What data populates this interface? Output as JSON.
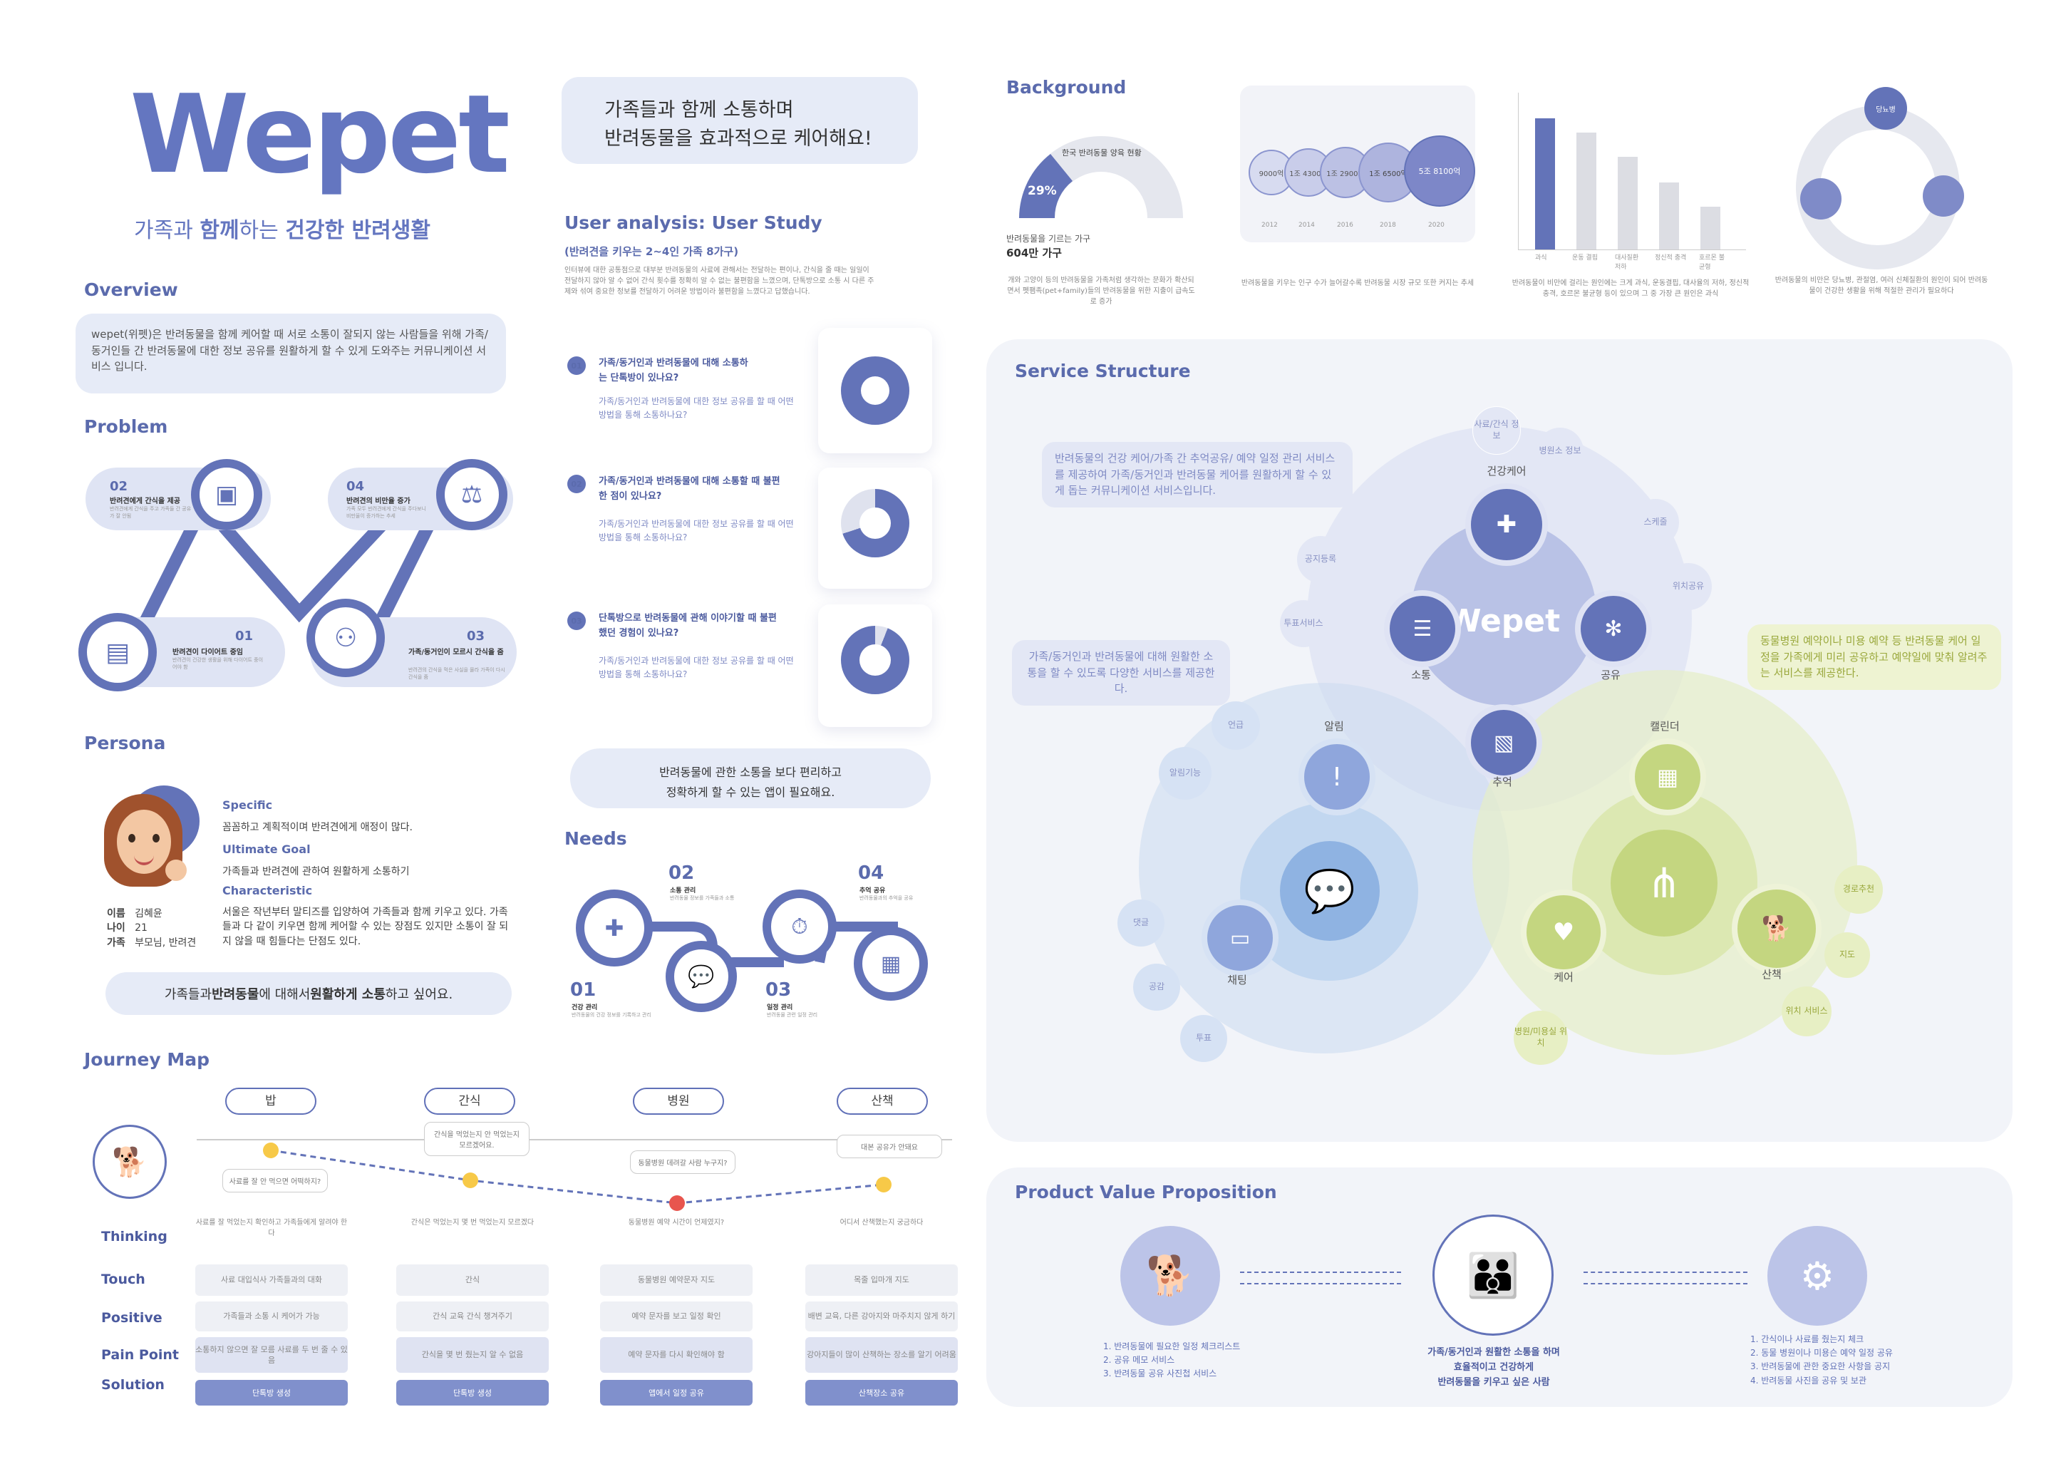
{
  "brand": {
    "logo": "Wepet",
    "tagline_pre": "가족과 ",
    "tagline_b1": "함께",
    "tagline_mid": "하는 ",
    "tagline_b2": "건강한 반려생활"
  },
  "hero_bubble": {
    "line1": "가족들과 함께 소통하며",
    "line2": "반려동물을 효과적으로 케어해요!"
  },
  "overview": {
    "title": "Overview",
    "text": "wepet(위펫)은 반려동물을 함께 케어할 때 서로 소통이 잘되지 않는 사람들을 위해 가족/동거인들 간 반려동물에 대한 정보 공유를 원활하게 할 수 있게 도와주는 커뮤니케이션 서비스 입니다."
  },
  "problem": {
    "title": "Problem",
    "items": [
      {
        "num": "02",
        "title": "반려견에게 간식을 제공",
        "desc": "반려견에게 간식을 주고 가족들 간 공유가 잘 안됨"
      },
      {
        "num": "04",
        "title": "반려견의 비만율 증가",
        "desc": "가족 모두 반려견에게 간식을 주다보니 비만율이 증가하는 추세"
      },
      {
        "num": "01",
        "title": "반려견이 다이어트 중임",
        "desc": "반려견이 건강한 생활을 위해 다이어트 중이어야 함"
      },
      {
        "num": "03",
        "title": "가족/동거인이 모르시 간식을 줌",
        "desc": "반려견의 간식을 먹은 사실을 몰라 가족이 다시 간식을 줌"
      }
    ]
  },
  "persona": {
    "title": "Persona",
    "specific_label": "Specific",
    "specific": "꼼꼼하고 계획적이며 반려견에게 애정이 많다.",
    "goal_label": "Ultimate Goal",
    "goal": "가족들과 반려견에 관하여 원활하게 소통하기",
    "char_label": "Characteristic",
    "char": "서울은 작년부터 말티즈를 입양하여 가족들과 함께 키우고 있다. 가족들과 다 같이 키우면 함께 케어할 수 있는 장점도 있지만 소통이 잘 되지 않을 때 힘들다는 단점도 있다.",
    "name_label": "이름",
    "name": "김혜윤",
    "age_label": "나이",
    "age": "21",
    "family_label": "가족",
    "family": "부모님, 반려견",
    "quote_pre": "가족들과 ",
    "quote_b1": "반려동물",
    "quote_mid": "에 대해서 ",
    "quote_b2": "원활하게 소통",
    "quote_post": "하고 싶어요."
  },
  "user_analysis": {
    "title": "User analysis: User Study",
    "subtitle": "(반려견을 키우는 2~4인 가족 8가구)",
    "desc": "인터뷰에 대한 공통점으로 대부분 반려동물의 사료에 관해서는 전달하는 편이나, 간식을 줄 때는 일일이 전달하지 않아 알 수 없어 간식 횟수를 정확히 알 수 없는 불편함을 느꼈으며, 단톡방으로 소통 시 다른 주제와 섞여 중요한 정보를 전달하기 어려운 방법이라 불편함을 느꼈다고 답했습니다.",
    "q": [
      {
        "num": "01",
        "title": "가족/동거인과 반려동물에 대해 소통하는 단톡방이 있나요?",
        "desc": "가족/동거인과 반려동물에 대한 정보 공유를 할 때 어떤 방법을 통해 소통하나요?"
      },
      {
        "num": "02",
        "title": "가족/동거인과 반려동물에 대해 소통할 때 불편한 점이 있나요?",
        "desc": "가족/동거인과 반려동물에 대한 정보 공유를 할 때 어떤 방법을 통해 소통하나요?"
      },
      {
        "num": "03",
        "title": "단톡방으로 반려동물에 관해 이야기할 때 불편했던 경험이 있나요?",
        "desc": "가족/동거인과 반려동물에 대한 정보 공유를 할 때 어떤 방법을 통해 소통하나요?"
      }
    ],
    "quote_line1": "반려동물에 관한 소통을 보다 편리하고",
    "quote_line2": "정확하게 할 수 있는 앱이 필요해요."
  },
  "needs": {
    "title": "Needs",
    "items": [
      {
        "num": "01",
        "title": "건강 관리",
        "desc": "반려동물의 건강 정보를 기록하고 관리"
      },
      {
        "num": "02",
        "title": "소통 관리",
        "desc": "반려동물 정보를 가족들과 소통"
      },
      {
        "num": "03",
        "title": "일정 관리",
        "desc": "반려동물 관련 일정 관리"
      },
      {
        "num": "04",
        "title": "추억 공유",
        "desc": "반려동물과의 추억을 공유"
      }
    ]
  },
  "journey": {
    "title": "Journey Map",
    "stages": [
      "밥",
      "간식",
      "병원",
      "산책"
    ],
    "notes": [
      "사료를 잘 안 먹으면 어떡하지?",
      "간식을 먹었는지 안 먹었는지 모르겠어요.",
      "동물병원 데려갈 사람 누구지?",
      "대본 공유가 안돼요"
    ],
    "rows": [
      "Thinking",
      "Touch",
      "Positive",
      "Pain Point",
      "Solution"
    ],
    "thinking": [
      "사료를 잘 먹었는지 확인하고 가족들에게 알려야 한다",
      "간식은 먹었는지 몇 번 먹었는지 모르겠다",
      "동물병원 예약 시간이 언제였지?",
      "어디서 산책했는지 궁금하다"
    ],
    "touch": [
      "사료 대입식사 가족들과의 대화",
      "간식",
      "동물병원 예약문자 지도",
      "목줄 입마개 지도"
    ],
    "positive": [
      "가족들과 소통 시 케어가 가능",
      "간식 교육 간식 챙겨주기",
      "예약 문자를 보고 일정 확인",
      "배변 교육, 다른 강아지와 마주치지 않게 하기"
    ],
    "pain": [
      "소통하지 않으면 잘 모름 사료를 두 번 줄 수 있음",
      "간식을 몇 번 줬는지 알 수 없음",
      "예약 문자를 다시 확인해야 함",
      "강아지들이 많이 산책하는 장소를 알기 어려움"
    ],
    "solution": [
      "단톡방 생성",
      "단톡방 생성",
      "앱에서 일정 공유",
      "산책장소 공유"
    ]
  },
  "background": {
    "title": "Background",
    "donut_title": "한국 반려동물 양육 현황",
    "donut_pct": "29%",
    "donut_label": "반려동물을 기르는 가구",
    "donut_value": "604만 가구",
    "bubbles_values": [
      "9000억",
      "1조 4300억",
      "1조 2900억",
      "1조 6500억",
      "5조 8100억"
    ],
    "bubbles_years": [
      "2012",
      "2014",
      "2016",
      "2018",
      "2020"
    ],
    "bar_categories": [
      "과식",
      "운동 결핍",
      "대사질환 저하",
      "정신적 충격",
      "호르몬 불균형"
    ],
    "cycle_center": "당뇨병",
    "cap1": "개와 고양이 등의 반려동물을 가족처럼 생각하는 문화가 확산되면서 펫팸족(pet+family)들의 반려동물을 위한 지출이 급속도로 증가",
    "cap2": "반려동물을 키우는 인구 수가 늘어갈수록 반려동물 시장 규모 또한 커지는 추세",
    "cap3": "반려동물이 비만에 걸리는 원인에는 크게 과식, 운동결핍, 대사율의 저하, 정신적 충격, 호르몬 불균형 등이 있으며 그 중 가장 큰 원인은 과식",
    "cap4": "반려동물의 비만은 당뇨병, 관절염, 여러 신체질환의 원인이 되어 반려동물이 건강한 생활을 위해 적절한 관리가 필요하다"
  },
  "service": {
    "title": "Service Structure",
    "logo": "Wepet",
    "desc1": "반려동물의 건강 케어/가족 간 추억공유/ 예약 일정 관리 서비스를 제공하여 가족/동거인과 반려동물 케어를 원활하게 할 수 있게 돕는 커뮤니케이션 서비스입니다.",
    "desc2": "가족/동거인과 반려동물에 대해 원활한 소통을 할 수 있도록 다양한 서비스를 제공한다.",
    "desc3": "동물병원 예약이나 미용 예약 등 반려동물 케어 일정을 가족에게 미리 공유하고 예약일에 맞춰 알려주는 서비스를 제공한다.",
    "nodes": {
      "health": "건강케어",
      "talk": "소통",
      "share": "공유",
      "memory": "추억",
      "alarm": "알림",
      "calendar": "캘린더",
      "chat": "채팅",
      "care": "케어",
      "walk": "산책"
    },
    "tags": [
      "사료/간식 정보",
      "병원소 정보",
      "스케줄",
      "위치공유",
      "공지등록",
      "투표서비스",
      "언급",
      "알림기능",
      "댓글",
      "공감",
      "투표",
      "경로추천",
      "지도",
      "위치 서비스",
      "병원/미용실 위치"
    ]
  },
  "value": {
    "title": "Product Value Proposition",
    "left": [
      "1. 반려동물에 필요한 일정 체크리스트",
      "2. 공유 메모 서비스",
      "3. 반려동물 공유 사진첩 서비스"
    ],
    "center_line1": "가족/동거인과 원활한 소통을 하며",
    "center_line2": "효율적이고 건강하게",
    "center_line3": "반려동물을 키우고 싶은 사람",
    "right": [
      "1. 간식이나 사료를 줬는지 체크",
      "2. 동물 병원이나 미용슨 예약 일정 공유",
      "3. 반려동물에 관한 중요한 사항을 공지",
      "4. 반려동물 사진을 공유 및 보관"
    ]
  }
}
